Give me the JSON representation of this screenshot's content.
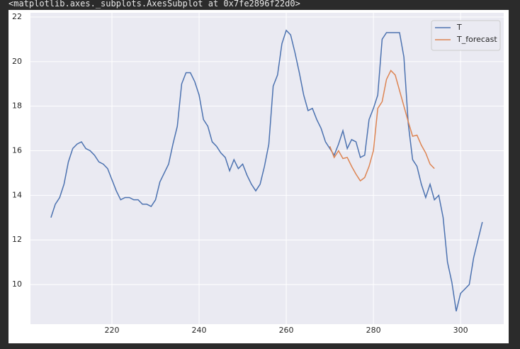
{
  "output_label": "<matplotlib.axes._subplots.AxesSubplot at 0x7fe2896f22d0>",
  "chart_data": {
    "type": "line",
    "xlim": [
      201.3,
      309.9
    ],
    "ylim": [
      8.22,
      22.19
    ],
    "xticks": [
      220,
      240,
      260,
      280,
      300
    ],
    "yticks": [
      10,
      12,
      14,
      16,
      18,
      20,
      22
    ],
    "grid": true,
    "legend": "upper right",
    "series": [
      {
        "name": "T",
        "color": "#4c72b0",
        "x": [
          206,
          207,
          208,
          209,
          210,
          211,
          212,
          213,
          214,
          215,
          216,
          217,
          218,
          219,
          220,
          221,
          222,
          223,
          224,
          225,
          226,
          227,
          228,
          229,
          230,
          231,
          232,
          233,
          234,
          235,
          236,
          237,
          238,
          239,
          240,
          241,
          242,
          243,
          244,
          245,
          246,
          247,
          248,
          249,
          250,
          251,
          252,
          253,
          254,
          255,
          256,
          257,
          258,
          259,
          260,
          261,
          262,
          263,
          264,
          265,
          266,
          267,
          268,
          269,
          270,
          271,
          272,
          273,
          274,
          275,
          276,
          277,
          278,
          279,
          280,
          281,
          282,
          283,
          284,
          285,
          286,
          287,
          288,
          289,
          290,
          291,
          292,
          293,
          294,
          295,
          296,
          297,
          298,
          299,
          300,
          301,
          302,
          303,
          304,
          305
        ],
        "values": [
          13.0,
          13.6,
          13.9,
          14.5,
          15.5,
          16.1,
          16.3,
          16.4,
          16.1,
          16.0,
          15.8,
          15.5,
          15.4,
          15.2,
          14.7,
          14.2,
          13.8,
          13.9,
          13.9,
          13.8,
          13.8,
          13.6,
          13.6,
          13.5,
          13.8,
          14.6,
          15.0,
          15.4,
          16.3,
          17.1,
          19.0,
          19.5,
          19.5,
          19.1,
          18.5,
          17.4,
          17.1,
          16.4,
          16.2,
          15.9,
          15.7,
          15.1,
          15.6,
          15.2,
          15.4,
          14.9,
          14.5,
          14.2,
          14.5,
          15.3,
          16.3,
          18.9,
          19.4,
          20.8,
          21.4,
          21.2,
          20.4,
          19.5,
          18.5,
          17.8,
          17.9,
          17.4,
          17.0,
          16.4,
          16.1,
          15.8,
          16.3,
          16.9,
          16.1,
          16.5,
          16.4,
          15.7,
          15.8,
          17.4,
          17.9,
          18.5,
          21.0,
          21.3,
          21.3,
          21.3,
          21.3,
          20.2,
          17.2,
          15.6,
          15.3,
          14.5,
          13.9,
          14.5,
          13.8,
          14.0,
          13.0,
          11.0,
          10.1,
          8.8,
          9.6,
          9.8,
          10.0,
          11.2,
          12.0,
          12.8
        ]
      },
      {
        "name": "T_forecast",
        "color": "#dd8452",
        "x": [
          270,
          271,
          272,
          273,
          274,
          275,
          276,
          277,
          278,
          279,
          280,
          281,
          282,
          283,
          284,
          285,
          286,
          287,
          288,
          289,
          290,
          291,
          292,
          293,
          294
        ],
        "values": [
          16.2,
          15.7,
          16.0,
          15.65,
          15.7,
          15.3,
          14.95,
          14.65,
          14.8,
          15.3,
          16.0,
          17.9,
          18.2,
          19.2,
          19.6,
          19.4,
          18.7,
          18.0,
          17.3,
          16.65,
          16.7,
          16.25,
          15.9,
          15.4,
          15.2
        ]
      }
    ]
  }
}
